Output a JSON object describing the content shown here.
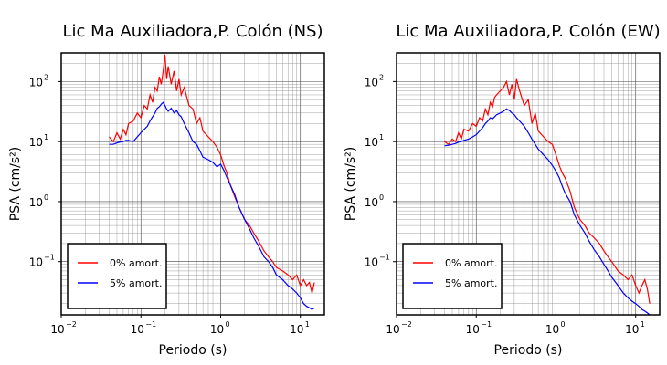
{
  "chart_data": [
    {
      "type": "line",
      "title": "Lic Ma Auxiliadora,P. Colón (NS)",
      "xlabel": "Periodo (s)",
      "ylabel": "PSA (cm/s²)",
      "x_scale": "log",
      "y_scale": "log",
      "xlim": [
        0.01,
        20
      ],
      "ylim": [
        0.013,
        300
      ],
      "x_ticks": [
        {
          "base": "10",
          "exp": "−2"
        },
        {
          "base": "10",
          "exp": "−1"
        },
        {
          "base": "10",
          "exp": "0"
        },
        {
          "base": "10",
          "exp": "1"
        }
      ],
      "y_ticks": [
        {
          "base": "10",
          "exp": "−1"
        },
        {
          "base": "10",
          "exp": "0"
        },
        {
          "base": "10",
          "exp": "1"
        },
        {
          "base": "10",
          "exp": "2"
        }
      ],
      "grid": true,
      "legend_position": "bottom-left",
      "series": [
        {
          "name": "0% amort.",
          "color": "#ff0000",
          "x": [
            0.04,
            0.045,
            0.05,
            0.055,
            0.06,
            0.065,
            0.07,
            0.08,
            0.09,
            0.1,
            0.11,
            0.12,
            0.13,
            0.14,
            0.15,
            0.16,
            0.17,
            0.18,
            0.19,
            0.2,
            0.21,
            0.22,
            0.24,
            0.26,
            0.28,
            0.3,
            0.32,
            0.35,
            0.4,
            0.45,
            0.5,
            0.55,
            0.6,
            0.7,
            0.8,
            0.9,
            1.0,
            1.1,
            1.2,
            1.3,
            1.5,
            1.7,
            2.0,
            2.3,
            2.6,
            3.0,
            3.5,
            4.0,
            4.5,
            5.0,
            6.0,
            7.0,
            8.0,
            9.0,
            10.0,
            11.0,
            12.0,
            13.0,
            14.0,
            15.0
          ],
          "y": [
            12,
            10,
            14,
            11,
            16,
            13,
            20,
            22,
            30,
            25,
            40,
            35,
            60,
            45,
            80,
            70,
            120,
            90,
            150,
            280,
            110,
            180,
            90,
            150,
            70,
            110,
            60,
            80,
            40,
            35,
            20,
            25,
            15,
            12,
            10,
            8,
            6,
            4,
            3,
            2,
            1.2,
            0.8,
            0.5,
            0.4,
            0.3,
            0.22,
            0.15,
            0.12,
            0.1,
            0.08,
            0.07,
            0.06,
            0.05,
            0.06,
            0.04,
            0.05,
            0.04,
            0.045,
            0.03,
            0.045
          ]
        },
        {
          "name": "5% amort.",
          "color": "#0000ff",
          "x": [
            0.04,
            0.045,
            0.05,
            0.055,
            0.06,
            0.065,
            0.07,
            0.08,
            0.09,
            0.1,
            0.11,
            0.12,
            0.13,
            0.14,
            0.15,
            0.16,
            0.17,
            0.18,
            0.19,
            0.2,
            0.21,
            0.22,
            0.24,
            0.26,
            0.28,
            0.3,
            0.32,
            0.35,
            0.4,
            0.45,
            0.5,
            0.55,
            0.6,
            0.7,
            0.8,
            0.9,
            1.0,
            1.1,
            1.2,
            1.3,
            1.5,
            1.7,
            2.0,
            2.3,
            2.6,
            3.0,
            3.5,
            4.0,
            4.5,
            5.0,
            6.0,
            7.0,
            8.0,
            9.0,
            10.0,
            11.0,
            12.0,
            13.0,
            14.0,
            15.0
          ],
          "y": [
            9,
            9,
            9.5,
            9.8,
            10,
            10.5,
            10.5,
            10,
            12,
            14,
            16,
            18,
            22,
            26,
            30,
            36,
            38,
            42,
            45,
            40,
            35,
            32,
            36,
            30,
            33,
            28,
            26,
            20,
            14,
            10,
            9,
            7,
            5.5,
            5,
            4.5,
            3.8,
            4.2,
            3.3,
            2.5,
            2.0,
            1.3,
            0.8,
            0.5,
            0.35,
            0.25,
            0.18,
            0.12,
            0.1,
            0.08,
            0.06,
            0.05,
            0.04,
            0.035,
            0.03,
            0.025,
            0.02,
            0.018,
            0.017,
            0.016,
            0.017
          ]
        }
      ]
    },
    {
      "type": "line",
      "title": "Lic Ma Auxiliadora,P. Colón (EW)",
      "xlabel": "Periodo (s)",
      "ylabel": "PSA (cm/s²)",
      "x_scale": "log",
      "y_scale": "log",
      "xlim": [
        0.01,
        20
      ],
      "ylim": [
        0.013,
        300
      ],
      "x_ticks": [
        {
          "base": "10",
          "exp": "−2"
        },
        {
          "base": "10",
          "exp": "−1"
        },
        {
          "base": "10",
          "exp": "0"
        },
        {
          "base": "10",
          "exp": "1"
        }
      ],
      "y_ticks": [
        {
          "base": "10",
          "exp": "−1"
        },
        {
          "base": "10",
          "exp": "0"
        },
        {
          "base": "10",
          "exp": "1"
        },
        {
          "base": "10",
          "exp": "2"
        }
      ],
      "grid": true,
      "legend_position": "bottom-left",
      "series": [
        {
          "name": "0% amort.",
          "color": "#ff0000",
          "x": [
            0.04,
            0.045,
            0.05,
            0.055,
            0.06,
            0.065,
            0.07,
            0.08,
            0.09,
            0.1,
            0.11,
            0.12,
            0.13,
            0.14,
            0.15,
            0.16,
            0.17,
            0.18,
            0.2,
            0.22,
            0.24,
            0.26,
            0.28,
            0.3,
            0.32,
            0.35,
            0.4,
            0.45,
            0.5,
            0.55,
            0.6,
            0.7,
            0.8,
            0.9,
            1.0,
            1.1,
            1.2,
            1.3,
            1.5,
            1.7,
            2.0,
            2.3,
            2.6,
            3.0,
            3.5,
            4.0,
            4.5,
            5.0,
            6.0,
            7.0,
            8.0,
            9.0,
            10.0,
            11.0,
            12.0,
            13.0,
            14.0,
            15.0
          ],
          "y": [
            10,
            9,
            11,
            10,
            14,
            11,
            16,
            15,
            20,
            18,
            25,
            22,
            35,
            28,
            45,
            38,
            55,
            60,
            70,
            80,
            100,
            60,
            90,
            50,
            110,
            70,
            40,
            50,
            20,
            30,
            15,
            12,
            10,
            9,
            6,
            4,
            3,
            2.5,
            1.5,
            0.8,
            0.5,
            0.4,
            0.3,
            0.25,
            0.2,
            0.15,
            0.12,
            0.1,
            0.07,
            0.06,
            0.05,
            0.06,
            0.04,
            0.03,
            0.04,
            0.05,
            0.035,
            0.02
          ]
        },
        {
          "name": "5% amort.",
          "color": "#0000ff",
          "x": [
            0.04,
            0.045,
            0.05,
            0.055,
            0.06,
            0.065,
            0.07,
            0.08,
            0.09,
            0.1,
            0.11,
            0.12,
            0.13,
            0.14,
            0.15,
            0.16,
            0.17,
            0.18,
            0.2,
            0.22,
            0.24,
            0.26,
            0.28,
            0.3,
            0.32,
            0.35,
            0.4,
            0.45,
            0.5,
            0.55,
            0.6,
            0.7,
            0.8,
            0.9,
            1.0,
            1.1,
            1.2,
            1.3,
            1.5,
            1.7,
            2.0,
            2.3,
            2.6,
            3.0,
            3.5,
            4.0,
            4.5,
            5.0,
            6.0,
            7.0,
            8.0,
            9.0,
            10.0,
            11.0,
            12.0,
            13.0,
            14.0,
            15.0
          ],
          "y": [
            8.5,
            8.7,
            9,
            9.3,
            9.8,
            10,
            10.5,
            11,
            12,
            13,
            15,
            17,
            20,
            22,
            25,
            24,
            26,
            28,
            30,
            32,
            35,
            33,
            30,
            28,
            25,
            22,
            18,
            14,
            11,
            9,
            7.5,
            6,
            5,
            4,
            3.2,
            2.5,
            1.8,
            1.4,
            1.0,
            0.6,
            0.4,
            0.3,
            0.22,
            0.16,
            0.12,
            0.09,
            0.07,
            0.055,
            0.04,
            0.03,
            0.025,
            0.022,
            0.02,
            0.018,
            0.016,
            0.015,
            0.014,
            0.013
          ]
        }
      ]
    }
  ]
}
